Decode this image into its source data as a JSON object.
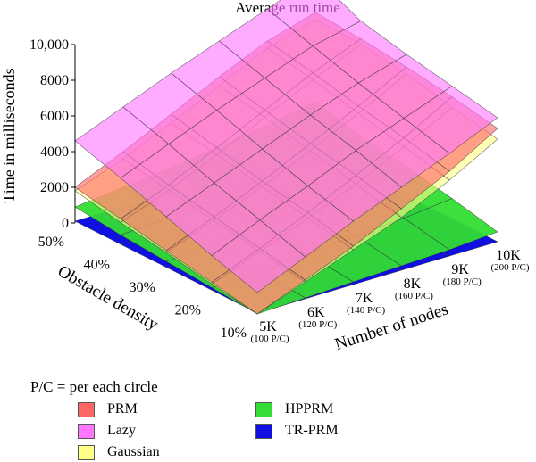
{
  "chart_data": {
    "type": "surface3d",
    "title": "Average run time",
    "xlabel": "Number of nodes",
    "ylabel": "Obstacle density",
    "zlabel": "Time in milliseconds",
    "x_ticks": [
      {
        "main": "5K",
        "sub": "(100 P/C)"
      },
      {
        "main": "6K",
        "sub": "(120 P/C)"
      },
      {
        "main": "7K",
        "sub": "(140 P/C)"
      },
      {
        "main": "8K",
        "sub": "(160 P/C)"
      },
      {
        "main": "9K",
        "sub": "(180 P/C)"
      },
      {
        "main": "10K",
        "sub": "(200 P/C)"
      }
    ],
    "y_ticks": [
      "10%",
      "20%",
      "30%",
      "40%",
      "50%"
    ],
    "z_ticks": [
      "0",
      "2000",
      "4000",
      "6000",
      "8000",
      "10,000"
    ],
    "zlim": [
      0,
      10000
    ],
    "legend_note": "P/C = per each circle",
    "legend": "bottom-left",
    "series": [
      {
        "name": "TR-PRM",
        "color": "#1010e0",
        "values": [
          [
            50,
            50,
            50,
            50,
            50,
            50
          ],
          [
            60,
            60,
            60,
            60,
            60,
            60
          ],
          [
            70,
            70,
            70,
            70,
            70,
            70
          ],
          [
            80,
            80,
            80,
            80,
            80,
            80
          ],
          [
            100,
            100,
            100,
            100,
            100,
            100
          ]
        ]
      },
      {
        "name": "HPPRM",
        "color": "#33dd33",
        "values": [
          [
            0,
            100,
            200,
            300,
            400,
            600
          ],
          [
            200,
            300,
            500,
            700,
            900,
            1200
          ],
          [
            400,
            600,
            800,
            1100,
            1400,
            1700
          ],
          [
            600,
            800,
            1100,
            1400,
            1700,
            2100
          ],
          [
            900,
            1200,
            1500,
            1900,
            2300,
            2800
          ]
        ]
      },
      {
        "name": "Gaussian",
        "color": "#ffff88",
        "values": [
          [
            0,
            1000,
            2000,
            3000,
            4300,
            5800
          ],
          [
            400,
            1400,
            2500,
            3600,
            4900,
            6300
          ],
          [
            900,
            1900,
            3000,
            4200,
            5500,
            6900
          ],
          [
            1300,
            2300,
            3500,
            4800,
            6100,
            7300
          ],
          [
            1800,
            2800,
            4000,
            5300,
            6600,
            7400
          ]
        ]
      },
      {
        "name": "PRM",
        "color": "#ff6666",
        "values": [
          [
            0,
            1100,
            2200,
            3500,
            4800,
            6400
          ],
          [
            500,
            1600,
            2800,
            4100,
            5400,
            6900
          ],
          [
            1000,
            2100,
            3300,
            4600,
            5900,
            7300
          ],
          [
            1500,
            2600,
            3900,
            5200,
            6500,
            7600
          ],
          [
            2000,
            3200,
            4500,
            5800,
            7000,
            7800
          ]
        ]
      },
      {
        "name": "Lazy",
        "color": "#ff77ff",
        "values": [
          [
            1200,
            2400,
            3600,
            4700,
            5800,
            7000
          ],
          [
            2000,
            3200,
            4300,
            5500,
            6500,
            7500
          ],
          [
            2900,
            4000,
            5100,
            6200,
            7200,
            8000
          ],
          [
            3800,
            4900,
            6000,
            7000,
            8000,
            8600
          ],
          [
            4600,
            5700,
            6800,
            7800,
            8800,
            9800
          ]
        ]
      }
    ]
  }
}
